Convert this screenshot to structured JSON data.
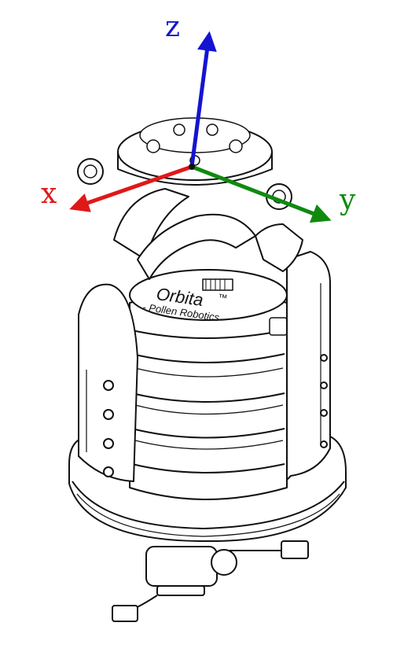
{
  "axes": {
    "z": {
      "label": "z",
      "color": "#1414d2"
    },
    "x": {
      "label": "x",
      "color": "#e01818"
    },
    "y": {
      "label": "y",
      "color": "#0f8a0f"
    }
  },
  "device": {
    "brand": "Orbita",
    "trademark": "™",
    "maker": "- Pollen Robotics"
  }
}
